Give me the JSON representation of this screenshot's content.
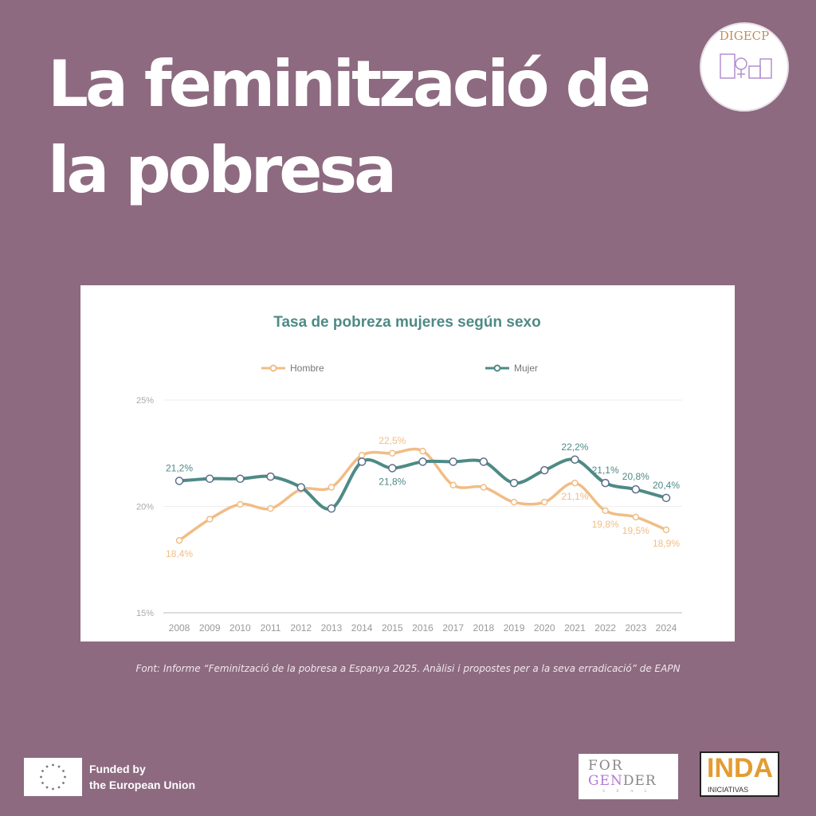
{
  "header": {
    "title_line1": "La feminització",
    "title_line2": "la pobresa",
    "title_de": "de"
  },
  "seal": {
    "text": "DIGECP"
  },
  "caption": "Font: Informe “Feminització de la pobresa a Espanya 2025. Anàlisi i propostes per a la seva erradicació” de EAPN",
  "footer": {
    "eu_line1": "Funded by",
    "eu_line2": "the European Union",
    "forgender_line1": "FOR",
    "forgender_gen": "GEN",
    "forgender_der": "DER",
    "forgender_sub": "SEAL",
    "inda_big": "INDA",
    "inda_small": "INICIATIVAS"
  },
  "colors": {
    "background": "#8d6a80",
    "hombre": "#f0bd86",
    "mujer": "#4e8a86"
  },
  "chart_data": {
    "type": "line",
    "title": "Tasa de pobreza mujeres según sexo",
    "legend_position": "top",
    "grid": true,
    "ylim": [
      15,
      25
    ],
    "yticks": [
      "15%",
      "20%",
      "25%"
    ],
    "ytick_values": [
      15,
      20,
      25
    ],
    "categories": [
      "2008",
      "2009",
      "2010",
      "2011",
      "2012",
      "2013",
      "2014",
      "2015",
      "2016",
      "2017",
      "2018",
      "2019",
      "2020",
      "2021",
      "2022",
      "2023",
      "2024"
    ],
    "series": [
      {
        "name": "Hombre",
        "color": "#f0bd86",
        "values": [
          18.4,
          19.4,
          20.1,
          19.9,
          20.8,
          20.9,
          22.4,
          22.5,
          22.6,
          21.0,
          20.9,
          20.2,
          20.2,
          21.1,
          19.8,
          19.5,
          18.9
        ],
        "labels": [
          {
            "year": "2008",
            "text": "18,4%",
            "position": "below"
          },
          {
            "year": "2015",
            "text": "22,5%",
            "position": "above"
          },
          {
            "year": "2021",
            "text": "21,1%",
            "position": "below"
          },
          {
            "year": "2022",
            "text": "19,8%",
            "position": "below"
          },
          {
            "year": "2023",
            "text": "19,5%",
            "position": "below"
          },
          {
            "year": "2024",
            "text": "18,9%",
            "position": "below"
          }
        ]
      },
      {
        "name": "Mujer",
        "color": "#4e8a86",
        "values": [
          21.2,
          21.3,
          21.3,
          21.4,
          20.9,
          19.9,
          22.1,
          21.8,
          22.1,
          22.1,
          22.1,
          21.1,
          21.7,
          22.2,
          21.1,
          20.8,
          20.4
        ],
        "labels": [
          {
            "year": "2008",
            "text": "21,2%",
            "position": "above"
          },
          {
            "year": "2015",
            "text": "21,8%",
            "position": "below"
          },
          {
            "year": "2021",
            "text": "22,2%",
            "position": "above"
          },
          {
            "year": "2022",
            "text": "21,1%",
            "position": "above"
          },
          {
            "year": "2023",
            "text": "20,8%",
            "position": "above"
          },
          {
            "year": "2024",
            "text": "20,4%",
            "position": "above"
          }
        ]
      }
    ]
  }
}
